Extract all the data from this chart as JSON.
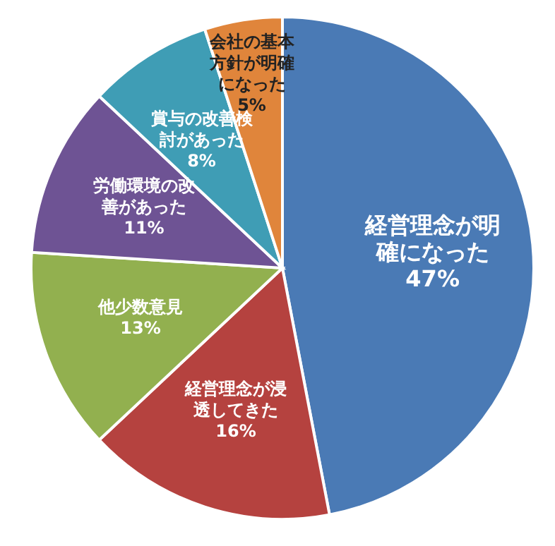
{
  "chart_data": {
    "type": "pie",
    "categories": [
      "経営理念が明確になった",
      "経営理念が浸透してきた",
      "他少数意見",
      "労働環境の改善があった",
      "賞与の改善検討があった",
      "会社の基本方針が明確になった"
    ],
    "values": [
      47,
      16,
      13,
      11,
      8,
      5
    ],
    "colors": [
      "#4a7ab5",
      "#b5423f",
      "#92b04f",
      "#6e5394",
      "#3f9db5",
      "#e0853b"
    ],
    "value_labels": [
      "47%",
      "16%",
      "13%",
      "11%",
      "8%",
      "5%"
    ]
  }
}
